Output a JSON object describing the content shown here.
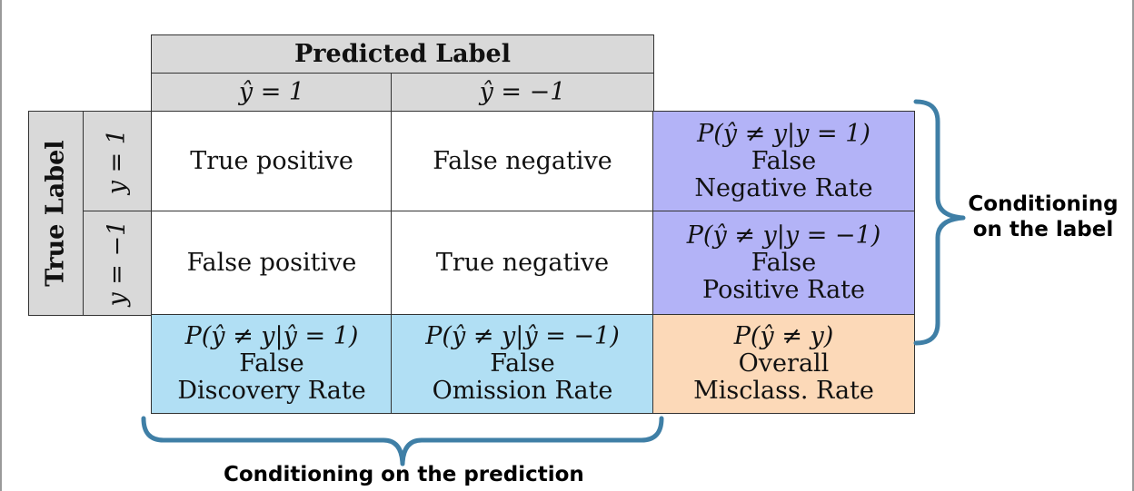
{
  "header": {
    "predicted_label": "Predicted Label",
    "yhat_pos": "ŷ = 1",
    "yhat_neg": "ŷ = −1"
  },
  "rows": {
    "true_label": "True Label",
    "y_pos": "y = 1",
    "y_neg": "y = −1"
  },
  "cells": {
    "tp": "True positive",
    "fn": "False negative",
    "fp": "False positive",
    "tn": "True negative"
  },
  "rates": {
    "fnr": {
      "formula": "P(ŷ ≠ y|y = 1)",
      "line1": "False",
      "line2": "Negative Rate"
    },
    "fpr": {
      "formula": "P(ŷ ≠ y|y = −1)",
      "line1": "False",
      "line2": "Positive Rate"
    },
    "fdr": {
      "formula": "P(ŷ ≠ y|ŷ = 1)",
      "line1": "False",
      "line2": "Discovery Rate"
    },
    "for": {
      "formula": "P(ŷ ≠ y|ŷ = −1)",
      "line1": "False",
      "line2": "Omission Rate"
    },
    "overall": {
      "formula": "P(ŷ ≠ y)",
      "line1": "Overall",
      "line2": "Misclass. Rate"
    }
  },
  "annotations": {
    "label_line1": "Conditioning",
    "label_line2": "on the label",
    "prediction": "Conditioning on the prediction"
  },
  "colors": {
    "gray": "#d9d9d9",
    "purple": "#b3b3f7",
    "blue": "#b1dff4",
    "orange": "#fcd9b8",
    "bracket": "#3f7fa6"
  }
}
